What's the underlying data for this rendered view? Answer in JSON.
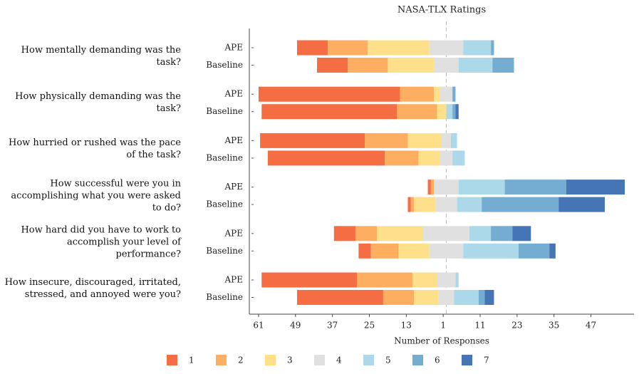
{
  "chart_data": {
    "type": "diverging_bar",
    "title": "NASA-TLX Ratings",
    "xlabel": "Number of Responses",
    "categories": [
      "How mentally demanding was the task?",
      "How physically demanding was the task?",
      "How hurried or rushed was the pace of the task?",
      "How successful were you in accomplishing what you were asked to do?",
      "How hard did you have to work to accomplish your level of performance?",
      "How insecure, discouraged, irritated, stressed, and annoyed were you?"
    ],
    "groups": [
      "APE",
      "Baseline"
    ],
    "group_colors": [
      "#7b93c6",
      "#333333"
    ],
    "series": [
      {
        "name": "1",
        "color": "#f46d43",
        "values": [
          [
            10,
            10
          ],
          [
            46,
            44
          ],
          [
            34,
            38
          ],
          [
            1,
            1
          ],
          [
            7,
            4
          ],
          [
            31,
            28
          ]
        ]
      },
      {
        "name": "2",
        "color": "#fdae61",
        "values": [
          [
            13,
            13
          ],
          [
            11,
            13
          ],
          [
            14,
            11
          ],
          [
            1,
            1
          ],
          [
            7,
            9
          ],
          [
            18,
            10
          ]
        ]
      },
      {
        "name": "3",
        "color": "#fee08b",
        "values": [
          [
            20,
            15
          ],
          [
            2,
            3
          ],
          [
            11,
            7
          ],
          [
            0,
            7
          ],
          [
            15,
            10
          ],
          [
            8,
            8
          ]
        ]
      },
      {
        "name": "4",
        "color": "#e0e0e0",
        "values": [
          [
            11,
            8
          ],
          [
            4,
            0
          ],
          [
            3,
            4
          ],
          [
            8,
            7
          ],
          [
            15,
            11
          ],
          [
            6,
            5
          ]
        ]
      },
      {
        "name": "5",
        "color": "#abd9e9",
        "values": [
          [
            9,
            11
          ],
          [
            0,
            2
          ],
          [
            2,
            4
          ],
          [
            15,
            8
          ],
          [
            7,
            18
          ],
          [
            1,
            8
          ]
        ]
      },
      {
        "name": "6",
        "color": "#74add1",
        "values": [
          [
            1,
            7
          ],
          [
            1,
            1
          ],
          [
            0,
            0
          ],
          [
            20,
            25
          ],
          [
            7,
            10
          ],
          [
            0,
            2
          ]
        ]
      },
      {
        "name": "7",
        "color": "#4575b4",
        "values": [
          [
            0,
            0
          ],
          [
            0,
            1
          ],
          [
            0,
            0
          ],
          [
            19,
            15
          ],
          [
            6,
            2
          ],
          [
            0,
            3
          ]
        ]
      }
    ],
    "xlim": [
      -64,
      61
    ],
    "xticks": [
      {
        "value": -61,
        "label": "61"
      },
      {
        "value": -49,
        "label": "49"
      },
      {
        "value": -37,
        "label": "37"
      },
      {
        "value": -25,
        "label": "25"
      },
      {
        "value": -13,
        "label": "13"
      },
      {
        "value": -1,
        "label": "1"
      },
      11,
      23,
      35,
      47
    ],
    "neutral_index": 3
  }
}
